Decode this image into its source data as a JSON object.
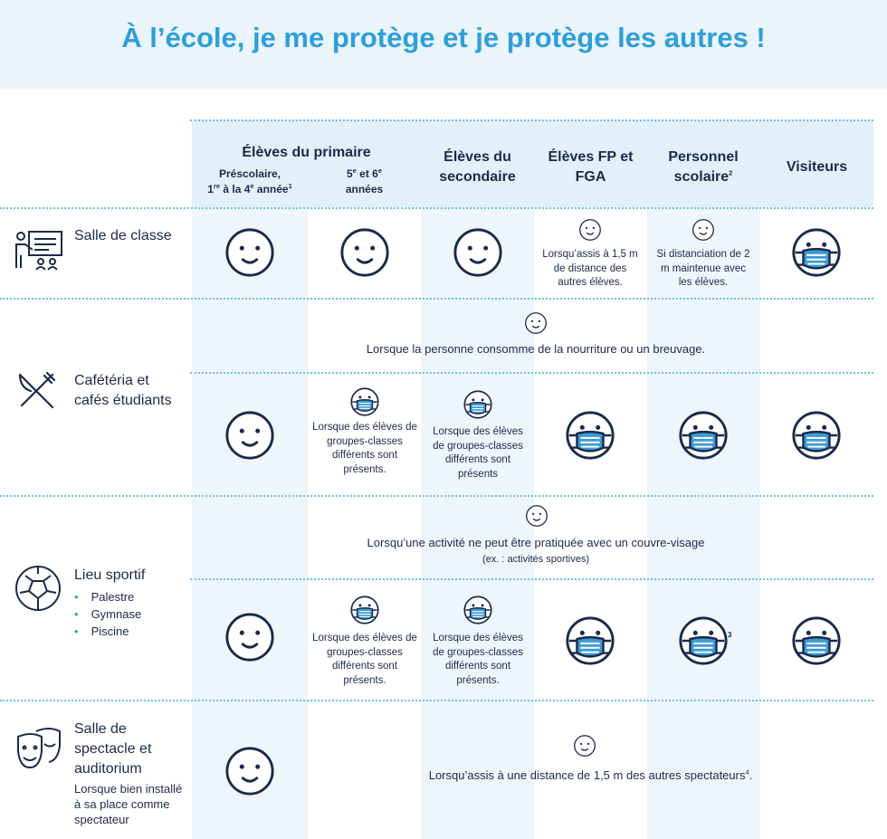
{
  "title": "À l’école, je me protège et je protège les autres !",
  "columns": {
    "primary": {
      "label": "Élèves du primaire",
      "sub1": [
        {
          "text": "Préscolaire,"
        },
        {
          "text": "1"
        },
        {
          "sup": "re"
        },
        {
          "text": " à la 4"
        },
        {
          "sup": "e"
        },
        {
          "text": " année"
        },
        {
          "sup": "1"
        }
      ],
      "sub2": [
        {
          "text": "5"
        },
        {
          "sup": "e"
        },
        {
          "text": " et 6"
        },
        {
          "sup": "e"
        },
        {
          "text": "années"
        }
      ]
    },
    "secondary": "Élèves du secondaire",
    "fp": "Élèves FP et FGA",
    "staff": [
      {
        "text": "Personnel scolaire"
      },
      {
        "sup": "2"
      }
    ],
    "visitors": "Visiteurs"
  },
  "rows": [
    {
      "label": "Salle de classe",
      "fp_note": "Lorsqu’assis à 1,5 m de distance des autres élèves.",
      "staff_note": "Si distanciation de 2 m maintenue avec les élèves."
    },
    {
      "label": "Cafétéria et cafés étudiants",
      "span_note": "Lorsque la personne consomme de la nourriture ou un breuvage.",
      "primary_note": "Lorsque des élèves de groupes-classes différents sont présents.",
      "secondary_note": "Lorsque des élèves de groupes-classes différents sont présents"
    },
    {
      "label": "Lieu sportif",
      "items": [
        "Palestre",
        "Gymnase",
        "Piscine"
      ],
      "span_note": "Lorsqu’une activité ne peut être pratiquée avec un couvre-visage",
      "span_sub": "(ex. : activités sportives)",
      "primary_note": "Lorsque des élèves de groupes-classes différents sont présents.",
      "secondary_note": "Lorsque des élèves de groupes-classes différents sont présents.",
      "staff_sup": "3"
    },
    {
      "label": "Salle de spectacle et auditorium",
      "sublabel": "Lorsque bien installé à sa place comme spectateur",
      "span_note": [
        {
          "text": "Lorsqu’assis à une distance de 1,5 m des autres spectateurs"
        },
        {
          "sup": "4"
        },
        {
          "text": "."
        }
      ]
    }
  ]
}
